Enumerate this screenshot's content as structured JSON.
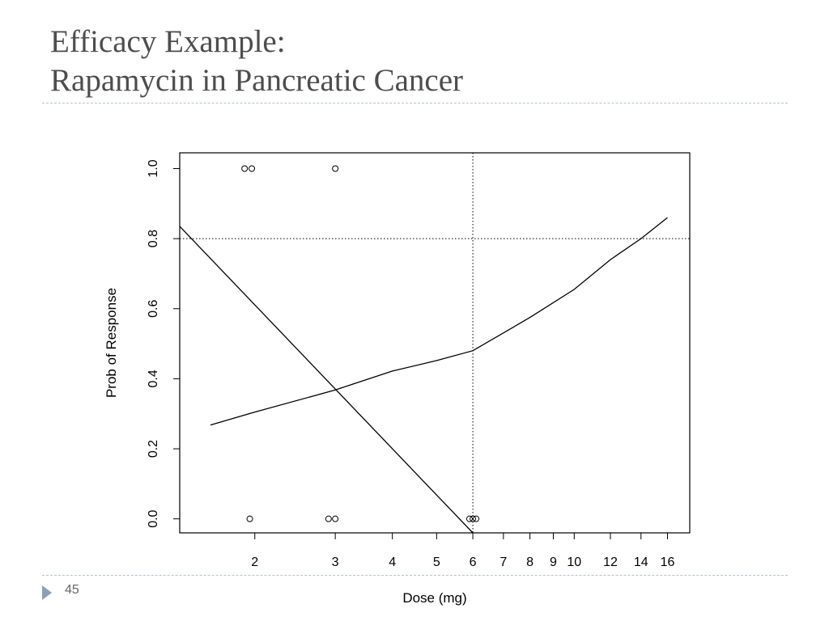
{
  "slide": {
    "title_line1": "Efficacy Example:",
    "title_line2": "Rapamycin in Pancreatic Cancer",
    "page_number": "45"
  },
  "colors": {
    "title": "#4d4d4d",
    "rule": "#b8c1cc",
    "marker": "#8aa0b8",
    "ink": "#000000"
  },
  "chart_data": {
    "type": "scatter",
    "title": "",
    "xlabel": "Dose (mg)",
    "ylabel": "Prob of Response",
    "x_scale": "log",
    "xlim": [
      1.37,
      17.9
    ],
    "ylim": [
      -0.04,
      1.045
    ],
    "x_ticks": [
      2,
      3,
      4,
      5,
      6,
      7,
      8,
      9,
      10,
      12,
      14,
      16
    ],
    "y_ticks": [
      0.0,
      0.2,
      0.4,
      0.6,
      0.8,
      1.0
    ],
    "y_tick_labels": [
      "0.0",
      "0.2",
      "0.4",
      "0.6",
      "0.8",
      "1.0"
    ],
    "grid": false,
    "points": [
      {
        "x": 1.9,
        "y": 1.0
      },
      {
        "x": 1.97,
        "y": 1.0
      },
      {
        "x": 3.0,
        "y": 1.0
      },
      {
        "x": 1.95,
        "y": 0.0
      },
      {
        "x": 2.9,
        "y": 0.0
      },
      {
        "x": 3.0,
        "y": 0.0
      },
      {
        "x": 5.9,
        "y": 0.0
      },
      {
        "x": 6.0,
        "y": 0.0
      },
      {
        "x": 6.1,
        "y": 0.0
      }
    ],
    "fitted_curve": {
      "x": [
        1.6,
        2,
        3,
        4,
        5,
        6,
        8,
        10,
        12,
        14,
        16
      ],
      "y": [
        0.268,
        0.305,
        0.368,
        0.422,
        0.452,
        0.48,
        0.575,
        0.655,
        0.74,
        0.8,
        0.86
      ]
    },
    "straight_line": {
      "x": [
        1.37,
        6.0
      ],
      "y": [
        0.835,
        -0.04
      ]
    },
    "reference_lines": {
      "vertical_x": 6,
      "horizontal_y": 0.8,
      "style": "dotted"
    }
  }
}
